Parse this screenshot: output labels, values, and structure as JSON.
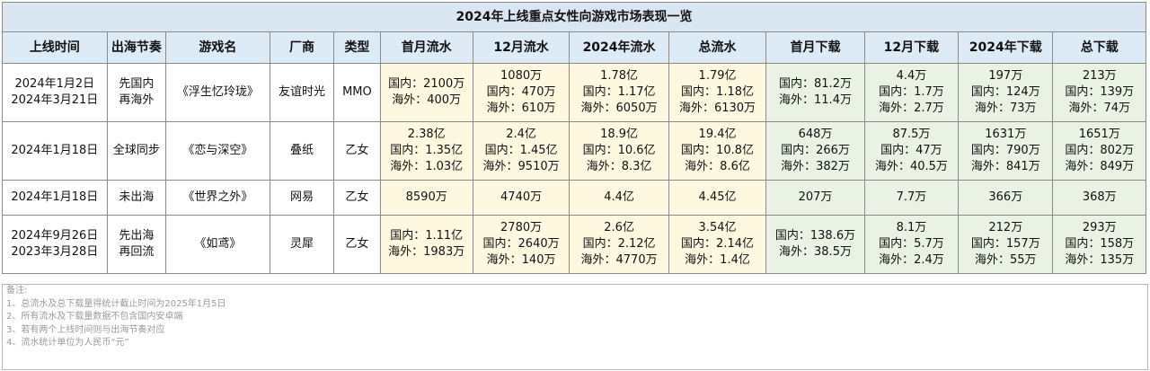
{
  "title": "2024年上线重点女性向游戏市场表现一览",
  "headers": [
    "上线时间",
    "出海节奏",
    "游戏名",
    "厂商",
    "类型",
    "首月流水",
    "12月流水",
    "2024年流水",
    "总流水",
    "首月下载",
    "12月下载",
    "2024年下载",
    "总下载"
  ],
  "rows": [
    {
      "launch": [
        "2024年1月2日",
        "2024年3月21日"
      ],
      "rhythm": [
        "先国内",
        "再海外"
      ],
      "game": "《浮生忆玲珑》",
      "vendor": "友谊时光",
      "type": "MMO",
      "first_month_rev": [
        "国内：2100万",
        "海外：400万"
      ],
      "dec_rev": [
        "1080万",
        "国内：470万",
        "海外：610万"
      ],
      "rev_2024": [
        "1.78亿",
        "国内：1.17亿",
        "海外：6050万"
      ],
      "total_rev": [
        "1.79亿",
        "国内：1.18亿",
        "海外：6130万"
      ],
      "first_month_dl": [
        "国内：81.2万",
        "海外：11.4万"
      ],
      "dec_dl": [
        "4.4万",
        "国内：1.7万",
        "海外：2.7万"
      ],
      "dl_2024": [
        "197万",
        "国内：124万",
        "海外：73万"
      ],
      "total_dl": [
        "213万",
        "国内：139万",
        "海外：74万"
      ]
    },
    {
      "launch": [
        "2024年1月18日"
      ],
      "rhythm": [
        "全球同步"
      ],
      "game": "《恋与深空》",
      "vendor": "叠纸",
      "type": "乙女",
      "first_month_rev": [
        "2.38亿",
        "国内：1.35亿",
        "海外：1.03亿"
      ],
      "dec_rev": [
        "2.4亿",
        "国内：1.45亿",
        "海外：9510万"
      ],
      "rev_2024": [
        "18.9亿",
        "国内：10.6亿",
        "海外：8.3亿"
      ],
      "total_rev": [
        "19.4亿",
        "国内：10.8亿",
        "海外：8.6亿"
      ],
      "first_month_dl": [
        "648万",
        "国内：266万",
        "海外：382万"
      ],
      "dec_dl": [
        "87.5万",
        "国内：47万",
        "海外：40.5万"
      ],
      "dl_2024": [
        "1631万",
        "国内：790万",
        "海外：841万"
      ],
      "total_dl": [
        "1651万",
        "国内：802万",
        "海外：849万"
      ]
    },
    {
      "launch": [
        "2024年1月18日"
      ],
      "rhythm": [
        "未出海"
      ],
      "game": "《世界之外》",
      "vendor": "网易",
      "type": "乙女",
      "first_month_rev": [
        "8590万"
      ],
      "dec_rev": [
        "4740万"
      ],
      "rev_2024": [
        "4.4亿"
      ],
      "total_rev": [
        "4.45亿"
      ],
      "first_month_dl": [
        "207万"
      ],
      "dec_dl": [
        "7.7万"
      ],
      "dl_2024": [
        "366万"
      ],
      "total_dl": [
        "368万"
      ]
    },
    {
      "launch": [
        "2024年9月26日",
        "2023年3月28日"
      ],
      "rhythm": [
        "先出海",
        "再回流"
      ],
      "game": "《如鸢》",
      "vendor": "灵犀",
      "type": "乙女",
      "first_month_rev": [
        "国内：1.11亿",
        "海外：1983万"
      ],
      "dec_rev": [
        "2780万",
        "国内：2640万",
        "海外：140万"
      ],
      "rev_2024": [
        "2.6亿",
        "国内：2.12亿",
        "海外：4770万"
      ],
      "total_rev": [
        "3.54亿",
        "国内：2.14亿",
        "海外：1.4亿"
      ],
      "first_month_dl": [
        "国内：138.6万",
        "海外：38.5万"
      ],
      "dec_dl": [
        "8.1万",
        "国内：5.7万",
        "海外：2.4万"
      ],
      "dl_2024": [
        "212万",
        "国内：157万",
        "海外：55万"
      ],
      "total_dl": [
        "293万",
        "国内：158万",
        "海外：135万"
      ]
    }
  ],
  "notes": [
    "备注:",
    "1、总流水及总下载量得统计截止时间为2025年1月5日",
    "2、所有流水及下载量数据不包含国内安卓端",
    "3、若有两个上线时间则与出海节奏对应",
    "4、流水统计单位为人民币“元”"
  ],
  "colors": {
    "header_bg": "#ddebf7",
    "revenue_bg": "#fff8e1",
    "download_bg": "#eaf2e3"
  }
}
